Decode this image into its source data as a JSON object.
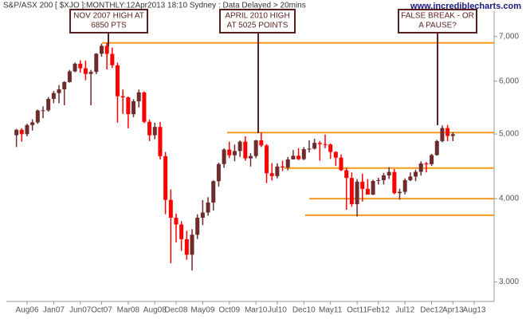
{
  "chart_data": {
    "type": "candlestick",
    "header": "S&P/ASX 200 [ $XJO ]:MONTHLY:12Apr2013 18:10 Sydney : Data Delayed > 20mins",
    "source": "www.incrediblecharts.com",
    "categories": [
      null,
      null,
      "Aug06",
      null,
      null,
      null,
      null,
      "Jan07",
      null,
      null,
      null,
      null,
      "Jun07",
      null,
      null,
      null,
      "Oct07",
      null,
      null,
      null,
      null,
      "Mar08",
      null,
      null,
      null,
      null,
      "Aug08",
      null,
      null,
      null,
      "Dec08",
      null,
      null,
      null,
      null,
      "May09",
      null,
      null,
      null,
      null,
      "Oct09",
      null,
      null,
      null,
      null,
      "Mar10",
      null,
      null,
      null,
      "Jul10",
      null,
      null,
      null,
      null,
      "Dec10",
      null,
      null,
      null,
      null,
      "May11",
      null,
      null,
      null,
      null,
      "Oct11",
      null,
      null,
      null,
      "Feb12",
      null,
      null,
      null,
      null,
      "Jul12",
      null,
      null,
      null,
      null,
      "Dec12",
      null,
      null,
      null,
      "Apr13",
      null,
      null,
      null,
      "Aug13"
    ],
    "open": [
      4980,
      5073,
      4997,
      5157,
      5206,
      5423,
      5426,
      5644,
      5759,
      5835,
      5984,
      6206,
      6374,
      6274,
      6153,
      6196,
      6598,
      6779,
      6593,
      6339,
      5697,
      5673,
      5355,
      5598,
      5773,
      5215,
      4979,
      5124,
      4632,
      3983,
      3745,
      3659,
      3478,
      3296,
      3532,
      3745,
      3813,
      3947,
      4249,
      4507,
      4739,
      4646,
      4715,
      4870,
      4596,
      4634,
      4893,
      4807,
      4367,
      4324,
      4469,
      4454,
      4581,
      4639,
      4584,
      4745,
      4754,
      4849,
      4829,
      4823,
      4700,
      4608,
      4412,
      4296,
      3925,
      4242,
      4137,
      4057,
      4252,
      4264,
      4335,
      4386,
      4077,
      4095,
      4264,
      4317,
      4388,
      4517,
      4506,
      4649,
      4879,
      5104,
      4967,
      null,
      null,
      null,
      null
    ],
    "high": [
      5090,
      5100,
      5180,
      5260,
      5440,
      5500,
      5680,
      5800,
      5920,
      6000,
      6240,
      6400,
      6450,
      6440,
      6240,
      6610,
      6830,
      6851,
      6740,
      6400,
      5830,
      5690,
      5640,
      5830,
      5790,
      5260,
      5200,
      5210,
      4700,
      4130,
      3800,
      3700,
      3580,
      3600,
      3790,
      3980,
      4020,
      4260,
      4530,
      4760,
      4870,
      4820,
      4890,
      4960,
      4680,
      4900,
      5025,
      4830,
      4520,
      4520,
      4560,
      4620,
      4730,
      4760,
      4780,
      4890,
      4920,
      4880,
      4990,
      4840,
      4710,
      4660,
      4450,
      4380,
      4280,
      4360,
      4280,
      4270,
      4300,
      4370,
      4460,
      4430,
      4140,
      4290,
      4380,
      4420,
      4550,
      4540,
      4670,
      4900,
      5150,
      5160,
      5030,
      null,
      null,
      null,
      null
    ],
    "low": [
      4780,
      4870,
      4960,
      5060,
      5180,
      5280,
      5400,
      5560,
      5560,
      5520,
      5970,
      6190,
      6180,
      6020,
      5520,
      6150,
      6530,
      6250,
      6280,
      5200,
      5360,
      5100,
      5300,
      5480,
      5190,
      4880,
      4910,
      4580,
      3790,
      3200,
      3440,
      3340,
      3240,
      3121,
      3480,
      3650,
      3770,
      3840,
      4170,
      4450,
      4600,
      4550,
      4620,
      4560,
      4470,
      4600,
      4780,
      4220,
      4260,
      4290,
      4400,
      4410,
      4580,
      4570,
      4570,
      4690,
      4740,
      4560,
      4760,
      4590,
      4480,
      4400,
      3850,
      3890,
      3760,
      3960,
      4060,
      4050,
      4200,
      4200,
      4280,
      4060,
      3985,
      4060,
      4250,
      4250,
      4330,
      4380,
      4480,
      4640,
      4860,
      4880,
      4880,
      null,
      null,
      null,
      null
    ],
    "close": [
      5073,
      4997,
      5157,
      5206,
      5423,
      5426,
      5644,
      5759,
      5835,
      5984,
      6206,
      6374,
      6274,
      6153,
      6196,
      6598,
      6779,
      6593,
      6339,
      5697,
      5673,
      5355,
      5598,
      5773,
      5215,
      4979,
      5124,
      4632,
      3983,
      3745,
      3659,
      3478,
      3296,
      3532,
      3745,
      3813,
      3947,
      4249,
      4507,
      4739,
      4646,
      4715,
      4870,
      4596,
      4634,
      4893,
      4807,
      4367,
      4324,
      4469,
      4454,
      4581,
      4639,
      4584,
      4745,
      4754,
      4849,
      4829,
      4823,
      4700,
      4608,
      4412,
      4296,
      3925,
      4242,
      4137,
      4057,
      4252,
      4264,
      4335,
      4386,
      4077,
      4095,
      4264,
      4317,
      4388,
      4517,
      4506,
      4649,
      4879,
      5104,
      4967,
      4997,
      null,
      null,
      null,
      null
    ],
    "up_color": "#6e2b2b",
    "down_color": "#ff0000",
    "ylim": [
      2805,
      7726
    ],
    "log_scale": true,
    "yticks": [
      {
        "value": 3000,
        "label": "3,000"
      },
      {
        "value": 4000,
        "label": "4,000"
      },
      {
        "value": 5000,
        "label": "5,000"
      },
      {
        "value": 6000,
        "label": "6,000"
      },
      {
        "value": 7000,
        "label": "7,000"
      }
    ],
    "levels": [
      6850,
      5025,
      4445,
      4000,
      3777
    ],
    "level_color": "#f39a1e",
    "annotations": [
      {
        "lines": [
          "NOV 2007 HIGH AT",
          "6850 PTS"
        ]
      },
      {
        "lines": [
          "APRIL 2010 HIGH",
          "AT 5025 POINTS"
        ]
      },
      {
        "lines": [
          "FALSE BREAK - OR",
          "A PAUSE?"
        ]
      }
    ]
  }
}
